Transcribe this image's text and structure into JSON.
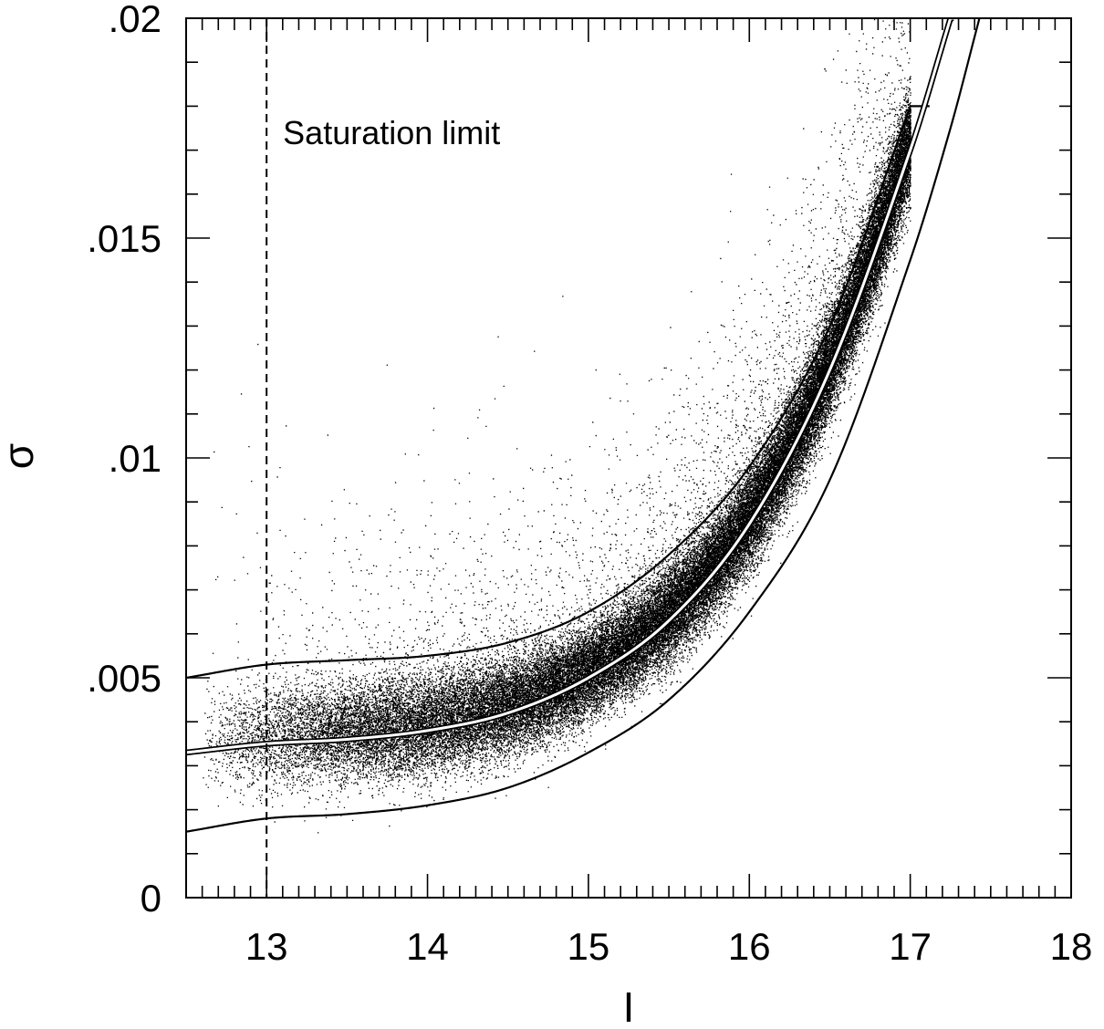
{
  "chart_data": {
    "type": "scatter",
    "title": "",
    "xlabel": "I",
    "ylabel": "σ",
    "xlim": [
      12.5,
      18
    ],
    "ylim": [
      0,
      0.02
    ],
    "x_ticks": [
      13,
      14,
      15,
      16,
      17,
      18
    ],
    "x_tick_labels": [
      "13",
      "14",
      "15",
      "16",
      "17",
      "18"
    ],
    "y_ticks": [
      0,
      0.005,
      0.01,
      0.015,
      0.02
    ],
    "y_tick_labels": [
      "0",
      ".005",
      ".01",
      ".015",
      ".02"
    ],
    "x_minor_step": 0.1,
    "y_minor_step": 0.001,
    "grid": false,
    "legend": "none",
    "saturation_line": {
      "x": 13,
      "style": "dashed",
      "label": "Saturation limit"
    },
    "curves": {
      "x": [
        12.5,
        13.0,
        13.5,
        14.0,
        14.5,
        15.0,
        15.5,
        16.0,
        16.5,
        17.0,
        17.25,
        17.43
      ],
      "upper": [
        0.005,
        0.0053,
        0.0054,
        0.0055,
        0.0058,
        0.0065,
        0.0078,
        0.0098,
        0.013,
        0.018,
        null,
        null
      ],
      "mean": [
        0.0033,
        0.0035,
        0.0036,
        0.0038,
        0.0042,
        0.005,
        0.0063,
        0.0085,
        0.012,
        0.017,
        0.02,
        null
      ],
      "lower": [
        0.0015,
        0.0018,
        0.0019,
        0.0021,
        0.0025,
        0.0033,
        0.0045,
        0.0065,
        0.0095,
        0.0145,
        0.0175,
        0.02
      ]
    },
    "scatter_description_points": {
      "density_along_mean_curve": true,
      "n_points": 60000,
      "x_range": [
        12.6,
        17.0
      ]
    }
  }
}
